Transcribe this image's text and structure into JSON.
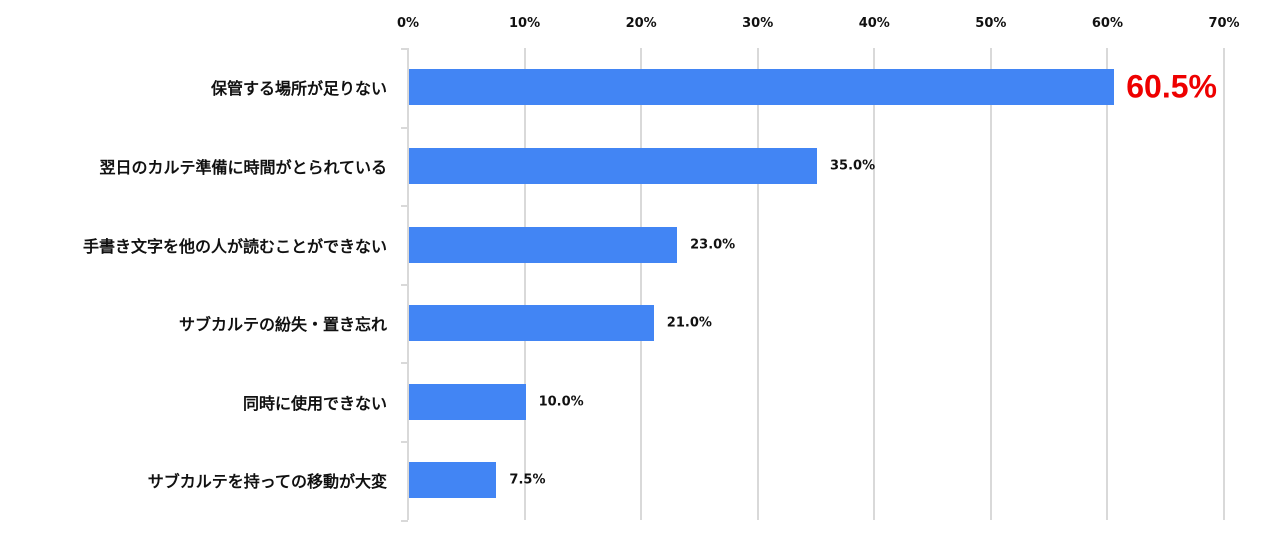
{
  "chart_data": {
    "type": "bar",
    "orientation": "horizontal",
    "title": "",
    "xlabel": "",
    "ylabel": "",
    "xlim": [
      0,
      70
    ],
    "x_ticks": [
      "0%",
      "10%",
      "20%",
      "30%",
      "40%",
      "50%",
      "60%",
      "70%"
    ],
    "grid": true,
    "legend": null,
    "bar_color": "#4285f4",
    "highlight_color": "#ee0000",
    "categories": [
      "保管する場所が足りない",
      "翌日のカルテ準備に時間がとられている",
      "手書き文字を他の人が読むことができない",
      "サブカルテの紛失・置き忘れ",
      "同時に使用できない",
      "サブカルテを持っての移動が大変"
    ],
    "values": [
      60.5,
      35.0,
      23.0,
      21.0,
      10.0,
      7.5
    ],
    "value_labels": [
      "60.5%",
      "35.0%",
      "23.0%",
      "21.0%",
      "10.0%",
      "7.5%"
    ],
    "highlighted_index": 0
  }
}
